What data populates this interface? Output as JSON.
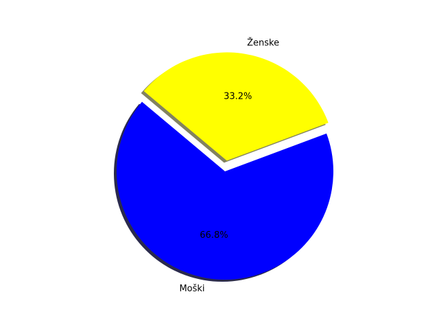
{
  "chart_data": {
    "type": "pie",
    "title": "",
    "slices": [
      {
        "label": "Moški",
        "value": 66.8,
        "pct_label": "66.8%",
        "color": "#0000ff",
        "explode": false
      },
      {
        "label": "Ženske",
        "value": 33.2,
        "pct_label": "33.2%",
        "color": "#ffff00",
        "explode": true
      }
    ],
    "shadow": true,
    "legend": "none"
  }
}
